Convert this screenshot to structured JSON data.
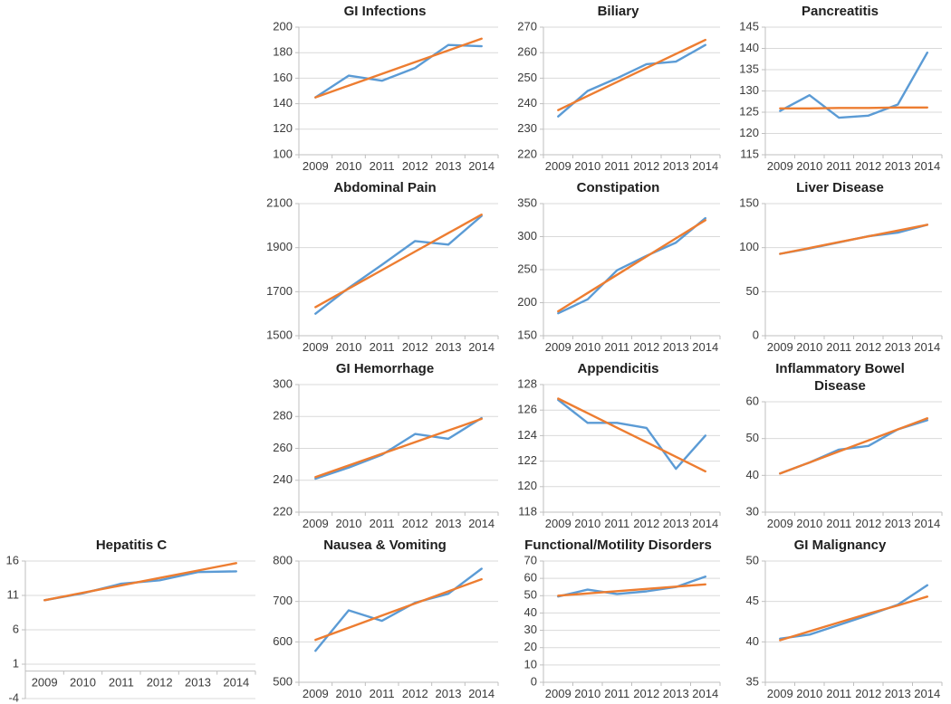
{
  "page": {
    "background": "#ffffff"
  },
  "colors": {
    "series_blue": "#5B9BD5",
    "series_orange": "#ED7D31",
    "gridline": "#D9D9D9",
    "axis_line": "#BFBFBF",
    "tick_text": "#3a3a3a",
    "title_text": "#1f1f1f"
  },
  "chart_data": [
    {
      "type": "line",
      "title": "GI Infections",
      "row": 1,
      "col": 2,
      "xlabel": "",
      "ylabel": "",
      "grid": "on",
      "legend": "none",
      "categories": [
        "2009",
        "2010",
        "2011",
        "2012",
        "2013",
        "2014"
      ],
      "ylim": [
        100,
        200
      ],
      "yticks": [
        100,
        120,
        140,
        160,
        180,
        200
      ],
      "series": [
        {
          "name": "blue-line",
          "color_key": "series_blue",
          "values": [
            145,
            162,
            158,
            168,
            186,
            185
          ]
        },
        {
          "name": "orange-trendline",
          "color_key": "series_orange",
          "values": [
            145,
            154.2,
            163.4,
            172.6,
            181.8,
            191
          ]
        }
      ]
    },
    {
      "type": "line",
      "title": "Biliary",
      "row": 1,
      "col": 3,
      "xlabel": "",
      "ylabel": "",
      "grid": "on",
      "legend": "none",
      "categories": [
        "2009",
        "2010",
        "2011",
        "2012",
        "2013",
        "2014"
      ],
      "ylim": [
        220,
        270
      ],
      "yticks": [
        220,
        230,
        240,
        250,
        260,
        270
      ],
      "series": [
        {
          "name": "blue-line",
          "color_key": "series_blue",
          "values": [
            235,
            245,
            250,
            255.5,
            256.5,
            263
          ]
        },
        {
          "name": "orange-trendline",
          "color_key": "series_orange",
          "values": [
            237.5,
            243,
            248.5,
            254,
            259.5,
            265
          ]
        }
      ]
    },
    {
      "type": "line",
      "title": "Pancreatitis",
      "row": 1,
      "col": 4,
      "xlabel": "",
      "ylabel": "",
      "grid": "on",
      "legend": "none",
      "categories": [
        "2009",
        "2010",
        "2011",
        "2012",
        "2013",
        "2014"
      ],
      "ylim": [
        115,
        145
      ],
      "yticks": [
        115,
        120,
        125,
        130,
        135,
        140,
        145
      ],
      "series": [
        {
          "name": "blue-line",
          "color_key": "series_blue",
          "values": [
            125.3,
            129,
            123.7,
            124.2,
            126.8,
            139
          ]
        },
        {
          "name": "orange-trendline",
          "color_key": "series_orange",
          "values": [
            125.9,
            125.9,
            126,
            126,
            126.1,
            126.1
          ]
        }
      ]
    },
    {
      "type": "line",
      "title": "Abdominal Pain",
      "row": 2,
      "col": 2,
      "xlabel": "",
      "ylabel": "",
      "grid": "on",
      "legend": "none",
      "categories": [
        "2009",
        "2010",
        "2011",
        "2012",
        "2013",
        "2014"
      ],
      "ylim": [
        1500,
        2100
      ],
      "yticks": [
        1500,
        1700,
        1900,
        2100
      ],
      "series": [
        {
          "name": "blue-line",
          "color_key": "series_blue",
          "values": [
            1600,
            1717,
            1822,
            1930,
            1914,
            2044
          ]
        },
        {
          "name": "orange-trendline",
          "color_key": "series_orange",
          "values": [
            1630,
            1714,
            1798,
            1882,
            1966,
            2050
          ]
        }
      ]
    },
    {
      "type": "line",
      "title": "Constipation",
      "row": 2,
      "col": 3,
      "xlabel": "",
      "ylabel": "",
      "grid": "on",
      "legend": "none",
      "categories": [
        "2009",
        "2010",
        "2011",
        "2012",
        "2013",
        "2014"
      ],
      "ylim": [
        150,
        350
      ],
      "yticks": [
        150,
        200,
        250,
        300,
        350
      ],
      "series": [
        {
          "name": "blue-line",
          "color_key": "series_blue",
          "values": [
            184,
            205,
            249,
            271,
            291,
            328
          ]
        },
        {
          "name": "orange-trendline",
          "color_key": "series_orange",
          "values": [
            187,
            214.6,
            242.2,
            269.8,
            297.4,
            325
          ]
        }
      ]
    },
    {
      "type": "line",
      "title": "Liver Disease",
      "row": 2,
      "col": 4,
      "xlabel": "",
      "ylabel": "",
      "grid": "on",
      "legend": "none",
      "categories": [
        "2009",
        "2010",
        "2011",
        "2012",
        "2013",
        "2014"
      ],
      "ylim": [
        0,
        150
      ],
      "yticks": [
        0,
        50,
        100,
        150
      ],
      "series": [
        {
          "name": "blue-line",
          "color_key": "series_blue",
          "values": [
            93,
            99,
            106,
            113,
            117,
            126
          ]
        },
        {
          "name": "orange-trendline",
          "color_key": "series_orange",
          "values": [
            93,
            99.6,
            106.2,
            112.8,
            119.4,
            126
          ]
        }
      ]
    },
    {
      "type": "line",
      "title": "GI Hemorrhage",
      "row": 3,
      "col": 2,
      "xlabel": "",
      "ylabel": "",
      "grid": "on",
      "legend": "none",
      "categories": [
        "2009",
        "2010",
        "2011",
        "2012",
        "2013",
        "2014"
      ],
      "ylim": [
        220,
        300
      ],
      "yticks": [
        220,
        240,
        260,
        280,
        300
      ],
      "series": [
        {
          "name": "blue-line",
          "color_key": "series_blue",
          "values": [
            241,
            248,
            256,
            269,
            266,
            279
          ]
        },
        {
          "name": "orange-trendline",
          "color_key": "series_orange",
          "values": [
            242,
            249.3,
            256.6,
            263.9,
            271.2,
            278.5
          ]
        }
      ]
    },
    {
      "type": "line",
      "title": "Appendicitis",
      "row": 3,
      "col": 3,
      "xlabel": "",
      "ylabel": "",
      "grid": "on",
      "legend": "none",
      "categories": [
        "2009",
        "2010",
        "2011",
        "2012",
        "2013",
        "2014"
      ],
      "ylim": [
        118,
        128
      ],
      "yticks": [
        118,
        120,
        122,
        124,
        126,
        128
      ],
      "series": [
        {
          "name": "blue-line",
          "color_key": "series_blue",
          "values": [
            126.8,
            125,
            125,
            124.6,
            121.4,
            124
          ]
        },
        {
          "name": "orange-trendline",
          "color_key": "series_orange",
          "values": [
            126.9,
            125.76,
            124.62,
            123.48,
            122.34,
            121.2
          ]
        }
      ]
    },
    {
      "type": "line",
      "title": "Inflammatory Bowel\nDisease",
      "row": 3,
      "col": 4,
      "xlabel": "",
      "ylabel": "",
      "grid": "on",
      "legend": "none",
      "categories": [
        "2009",
        "2010",
        "2011",
        "2012",
        "2013",
        "2014"
      ],
      "ylim": [
        30,
        60
      ],
      "yticks": [
        30,
        40,
        50,
        60
      ],
      "series": [
        {
          "name": "blue-line",
          "color_key": "series_blue",
          "values": [
            40.5,
            43.5,
            47,
            48,
            52.5,
            55
          ]
        },
        {
          "name": "orange-trendline",
          "color_key": "series_orange",
          "values": [
            40.5,
            43.5,
            46.5,
            49.5,
            52.5,
            55.5
          ]
        }
      ]
    },
    {
      "type": "line",
      "title": "Hepatitis C",
      "row": 4,
      "col": 1,
      "xlabel": "",
      "ylabel": "",
      "grid": "on",
      "legend": "none",
      "categories": [
        "2009",
        "2010",
        "2011",
        "2012",
        "2013",
        "2014"
      ],
      "ylim": [
        -4,
        16
      ],
      "yticks": [
        -4,
        1,
        6,
        11,
        16
      ],
      "x_axis_at": 0,
      "x_labels_inside": true,
      "series": [
        {
          "name": "blue-line",
          "color_key": "series_blue",
          "values": [
            10.3,
            11.3,
            12.7,
            13.2,
            14.4,
            14.5
          ]
        },
        {
          "name": "orange-trendline",
          "color_key": "series_orange",
          "values": [
            10.3,
            11.38,
            12.46,
            13.54,
            14.62,
            15.7
          ]
        }
      ]
    },
    {
      "type": "line",
      "title": "Nausea & Vomiting",
      "row": 4,
      "col": 2,
      "xlabel": "",
      "ylabel": "",
      "grid": "on",
      "legend": "none",
      "categories": [
        "2009",
        "2010",
        "2011",
        "2012",
        "2013",
        "2014"
      ],
      "ylim": [
        500,
        800
      ],
      "yticks": [
        500,
        600,
        700,
        800
      ],
      "series": [
        {
          "name": "blue-line",
          "color_key": "series_blue",
          "values": [
            578,
            678,
            652,
            697,
            719,
            781
          ]
        },
        {
          "name": "orange-trendline",
          "color_key": "series_orange",
          "values": [
            605,
            635,
            665,
            695,
            725,
            755
          ]
        }
      ]
    },
    {
      "type": "line",
      "title": "Functional/Motility Disorders",
      "row": 4,
      "col": 3,
      "xlabel": "",
      "ylabel": "",
      "grid": "on",
      "legend": "none",
      "categories": [
        "2009",
        "2010",
        "2011",
        "2012",
        "2013",
        "2014"
      ],
      "ylim": [
        0,
        70
      ],
      "yticks": [
        0,
        10,
        20,
        30,
        40,
        50,
        60,
        70
      ],
      "series": [
        {
          "name": "blue-line",
          "color_key": "series_blue",
          "values": [
            49.5,
            53.5,
            51,
            52.5,
            55,
            61
          ]
        },
        {
          "name": "orange-trendline",
          "color_key": "series_orange",
          "values": [
            50,
            51.3,
            52.6,
            53.9,
            55.2,
            56.5
          ]
        }
      ]
    },
    {
      "type": "line",
      "title": "GI Malignancy",
      "row": 4,
      "col": 4,
      "xlabel": "",
      "ylabel": "",
      "grid": "on",
      "legend": "none",
      "categories": [
        "2009",
        "2010",
        "2011",
        "2012",
        "2013",
        "2014"
      ],
      "ylim": [
        35,
        50
      ],
      "yticks": [
        35,
        40,
        45,
        50
      ],
      "series": [
        {
          "name": "blue-line",
          "color_key": "series_blue",
          "values": [
            40.4,
            40.9,
            42.1,
            43.3,
            44.6,
            47
          ]
        },
        {
          "name": "orange-trendline",
          "color_key": "series_orange",
          "values": [
            40.2,
            41.3,
            42.4,
            43.5,
            44.5,
            45.6
          ]
        }
      ]
    }
  ]
}
